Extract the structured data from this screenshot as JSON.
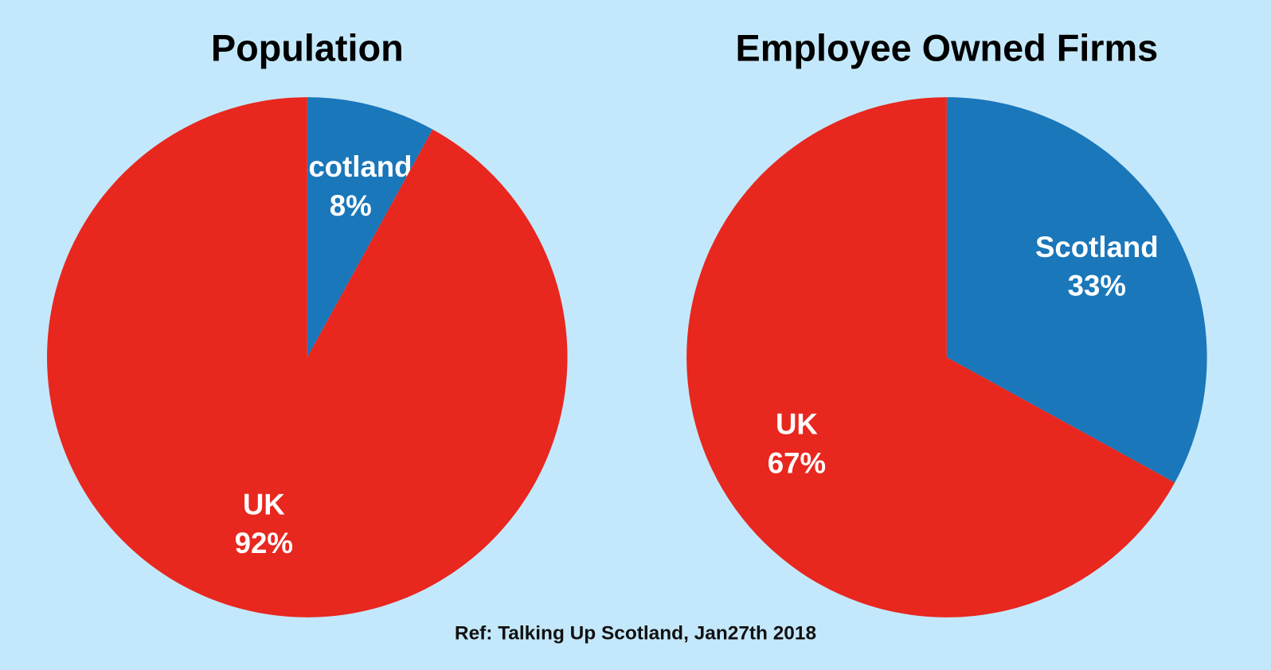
{
  "chart_data": [
    {
      "type": "pie",
      "title": "Population",
      "categories": [
        "Scotland",
        "UK"
      ],
      "values": [
        8,
        92
      ],
      "value_labels": [
        "8%",
        "92%"
      ],
      "colors": [
        "#1a77ba",
        "#e8271f"
      ]
    },
    {
      "type": "pie",
      "title": "Employee Owned Firms",
      "categories": [
        "Scotland",
        "UK"
      ],
      "values": [
        33,
        67
      ],
      "value_labels": [
        "33%",
        "67%"
      ],
      "colors": [
        "#1a77ba",
        "#e8271f"
      ]
    }
  ],
  "footnote": "Ref: Talking Up Scotland, Jan27th 2018"
}
